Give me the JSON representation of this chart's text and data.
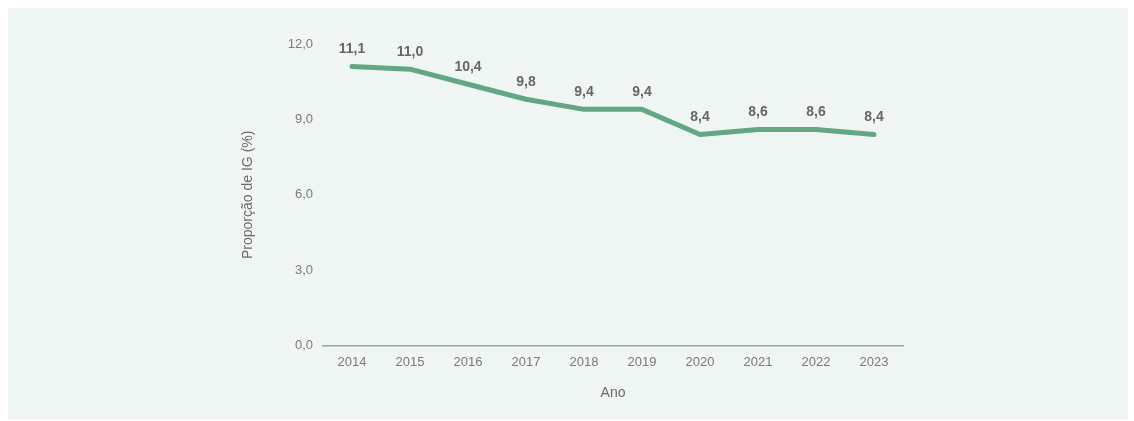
{
  "chart_data": {
    "type": "line",
    "xlabel": "Ano",
    "ylabel": "Proporção de IG (%)",
    "categories": [
      "2014",
      "2015",
      "2016",
      "2017",
      "2018",
      "2019",
      "2020",
      "2021",
      "2022",
      "2023"
    ],
    "series": [
      {
        "color": "#62a683",
        "values": [
          11.1,
          11.0,
          10.4,
          9.8,
          9.4,
          9.4,
          8.4,
          8.6,
          8.6,
          8.4
        ],
        "value_labels": [
          "11,1",
          "11,0",
          "10,4",
          "9,8",
          "9,4",
          "9,4",
          "8,4",
          "8,6",
          "8,6",
          "8,4"
        ]
      }
    ],
    "ylim": [
      0,
      12
    ],
    "yticks": [
      {
        "value": 0,
        "label": "0,0"
      },
      {
        "value": 3,
        "label": "3,0"
      },
      {
        "value": 6,
        "label": "6,0"
      },
      {
        "value": 9,
        "label": "9,0"
      },
      {
        "value": 12,
        "label": "12,0"
      }
    ],
    "grid": false,
    "legend": false,
    "marker": "none",
    "line_style": "solid"
  }
}
